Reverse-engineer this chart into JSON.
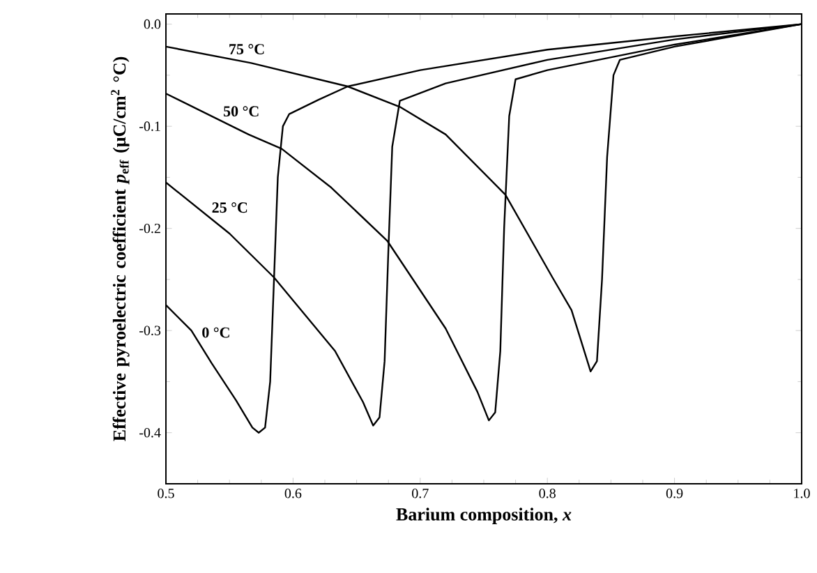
{
  "chart_data": {
    "type": "line",
    "xlabel": "Barium composition, *x*",
    "ylabel": "Effective pyroelectric coefficient *p*$_{eff}$ (μC/cm$^{2}$ °C)",
    "xlim": [
      0.5,
      1.0
    ],
    "ylim": [
      -0.45,
      0.01
    ],
    "xticks": [
      0.5,
      0.6,
      0.7,
      0.8,
      0.9,
      {
        "value": 1.0,
        "label": "1.0"
      }
    ],
    "yticks": [
      {
        "value": 0,
        "label": "0.0"
      },
      -0.1,
      -0.2,
      -0.3,
      -0.4
    ],
    "grid": false,
    "legend": false,
    "marker": "none",
    "line_style": "solid",
    "series": [
      {
        "name": "0 °C",
        "color": "#000000",
        "x": [
          0.5,
          0.52,
          0.536,
          0.555,
          0.568,
          0.573,
          0.578,
          0.582,
          0.585,
          0.588,
          0.592,
          0.597,
          0.62,
          0.643,
          0.7,
          0.8,
          0.9,
          1.0
        ],
        "values": [
          -0.275,
          -0.3,
          -0.332,
          -0.368,
          -0.395,
          -0.4,
          -0.395,
          -0.35,
          -0.25,
          -0.15,
          -0.1,
          -0.088,
          -0.074,
          -0.061,
          -0.045,
          -0.025,
          -0.012,
          0
        ]
      },
      {
        "name": "25 °C",
        "color": "#000000",
        "x": [
          0.5,
          0.55,
          0.585,
          0.633,
          0.655,
          0.663,
          0.668,
          0.672,
          0.675,
          0.678,
          0.684,
          0.72,
          0.8,
          0.9,
          1.0
        ],
        "values": [
          -0.155,
          -0.205,
          -0.248,
          -0.32,
          -0.37,
          -0.393,
          -0.385,
          -0.33,
          -0.22,
          -0.12,
          -0.075,
          -0.058,
          -0.035,
          -0.015,
          0
        ]
      },
      {
        "name": "50 °C",
        "color": "#000000",
        "x": [
          0.5,
          0.565,
          0.591,
          0.63,
          0.674,
          0.72,
          0.745,
          0.754,
          0.759,
          0.763,
          0.766,
          0.77,
          0.775,
          0.8,
          0.9,
          1.0
        ],
        "values": [
          -0.068,
          -0.108,
          -0.122,
          -0.16,
          -0.212,
          -0.298,
          -0.36,
          -0.388,
          -0.38,
          -0.32,
          -0.2,
          -0.09,
          -0.054,
          -0.045,
          -0.02,
          0
        ]
      },
      {
        "name": "75 °C",
        "color": "#000000",
        "x": [
          0.5,
          0.567,
          0.643,
          0.684,
          0.72,
          0.767,
          0.804,
          0.819,
          0.834,
          0.839,
          0.843,
          0.847,
          0.852,
          0.857,
          0.9,
          1.0
        ],
        "values": [
          -0.022,
          -0.038,
          -0.061,
          -0.081,
          -0.108,
          -0.167,
          -0.248,
          -0.28,
          -0.34,
          -0.33,
          -0.25,
          -0.13,
          -0.05,
          -0.035,
          -0.022,
          0
        ]
      }
    ]
  }
}
